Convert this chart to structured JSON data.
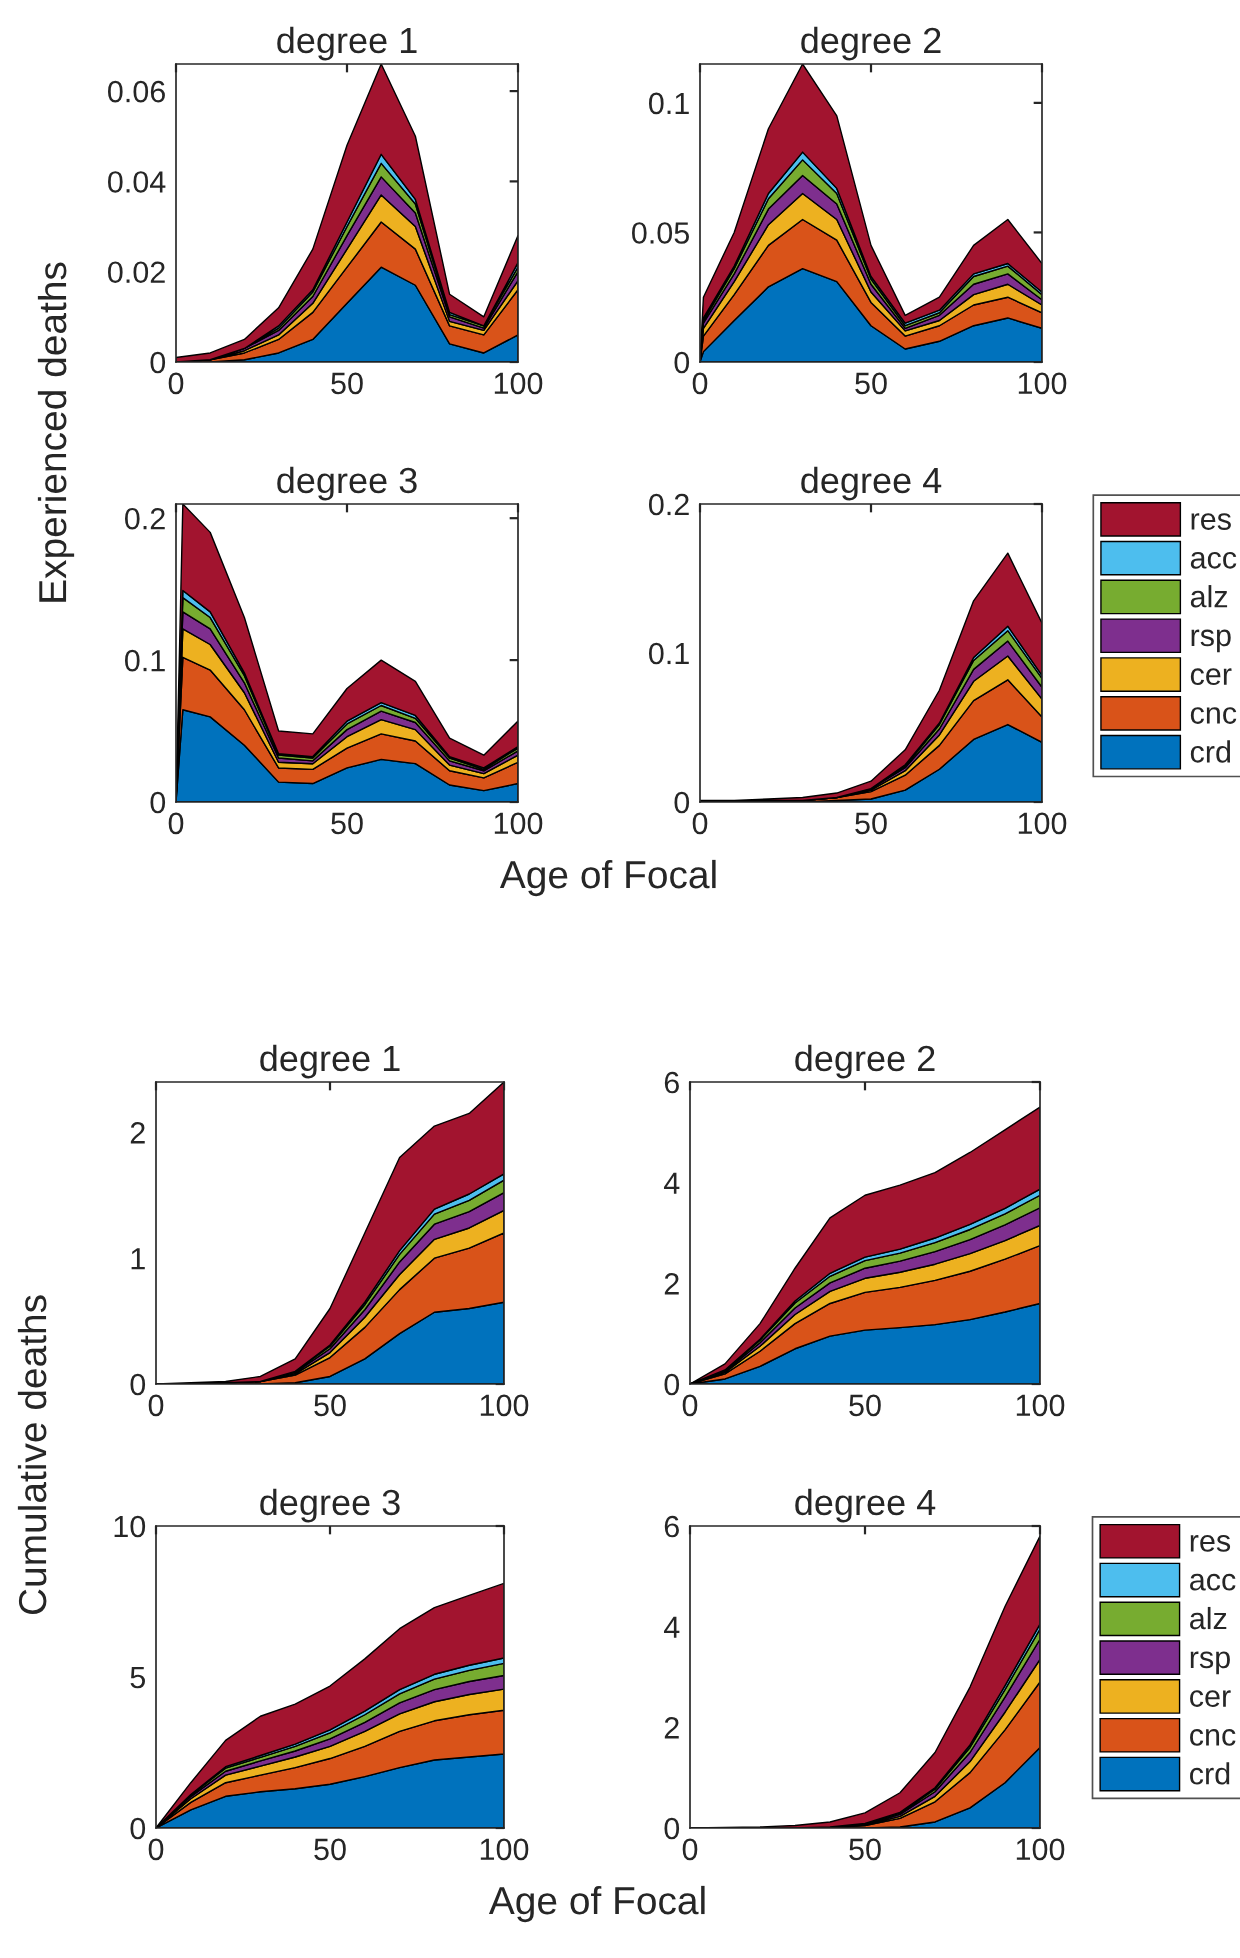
{
  "chart_data": [
    {
      "type": "area",
      "stacked": true,
      "title": "degree 1",
      "ylabel": "Experienced deaths",
      "xlim": [
        0,
        100
      ],
      "xticks": [
        0,
        50,
        100
      ],
      "ylim": [
        0,
        0.066
      ],
      "yticks": [
        0,
        0.02,
        0.04,
        0.06
      ],
      "x": [
        0,
        10,
        20,
        30,
        40,
        50,
        60,
        70,
        80,
        90,
        100
      ],
      "series": [
        {
          "color": "#0072bd",
          "values": [
            0,
            0,
            0.0005,
            0.002,
            0.005,
            0.013,
            0.021,
            0.017,
            0.004,
            0.002,
            0.006
          ]
        },
        {
          "color": "#d95319",
          "values": [
            0,
            0.0005,
            0.0015,
            0.003,
            0.006,
            0.008,
            0.01,
            0.008,
            0.004,
            0.004,
            0.01
          ]
        },
        {
          "color": "#edb120",
          "values": [
            0,
            0,
            0.0005,
            0.001,
            0.002,
            0.004,
            0.006,
            0.005,
            0.001,
            0.001,
            0.002
          ]
        },
        {
          "color": "#7e2f8e",
          "values": [
            0,
            0,
            0.0005,
            0.001,
            0.0015,
            0.003,
            0.004,
            0.003,
            0.001,
            0.0005,
            0.002
          ]
        },
        {
          "color": "#77ac30",
          "values": [
            0,
            0,
            0,
            0.0005,
            0.001,
            0.002,
            0.003,
            0.002,
            0.0005,
            0.0005,
            0.001
          ]
        },
        {
          "color": "#4dbeee",
          "values": [
            0,
            0,
            0,
            0.0005,
            0.0005,
            0.001,
            0.002,
            0.001,
            0.0005,
            0,
            0.001
          ]
        },
        {
          "color": "#a2142f",
          "values": [
            0.001,
            0.0015,
            0.002,
            0.004,
            0.009,
            0.017,
            0.02,
            0.014,
            0.004,
            0.002,
            0.006
          ]
        }
      ]
    },
    {
      "type": "area",
      "stacked": true,
      "title": "degree 2",
      "xlim": [
        0,
        100
      ],
      "xticks": [
        0,
        50,
        100
      ],
      "ylim": [
        0,
        0.115
      ],
      "yticks": [
        0,
        0.05,
        0.1
      ],
      "x": [
        0,
        1,
        10,
        20,
        30,
        40,
        50,
        60,
        70,
        80,
        90,
        100
      ],
      "series": [
        {
          "color": "#0072bd",
          "values": [
            0,
            0.004,
            0.016,
            0.029,
            0.036,
            0.031,
            0.014,
            0.005,
            0.008,
            0.014,
            0.017,
            0.013
          ]
        },
        {
          "color": "#d95319",
          "values": [
            0,
            0.006,
            0.01,
            0.016,
            0.019,
            0.016,
            0.009,
            0.005,
            0.006,
            0.008,
            0.008,
            0.006
          ]
        },
        {
          "color": "#edb120",
          "values": [
            0,
            0.003,
            0.005,
            0.008,
            0.01,
            0.008,
            0.004,
            0.002,
            0.002,
            0.004,
            0.005,
            0.003
          ]
        },
        {
          "color": "#7e2f8e",
          "values": [
            0,
            0.002,
            0.003,
            0.006,
            0.007,
            0.006,
            0.003,
            0.001,
            0.002,
            0.004,
            0.004,
            0.002
          ]
        },
        {
          "color": "#77ac30",
          "values": [
            0,
            0.001,
            0.002,
            0.004,
            0.006,
            0.004,
            0.002,
            0.001,
            0.001,
            0.003,
            0.003,
            0.002
          ]
        },
        {
          "color": "#4dbeee",
          "values": [
            0,
            0.001,
            0.001,
            0.002,
            0.003,
            0.002,
            0.001,
            0.001,
            0.001,
            0.001,
            0.001,
            0.001
          ]
        },
        {
          "color": "#a2142f",
          "values": [
            0,
            0.008,
            0.013,
            0.025,
            0.034,
            0.028,
            0.012,
            0.003,
            0.005,
            0.011,
            0.017,
            0.011
          ]
        }
      ]
    },
    {
      "type": "area",
      "stacked": true,
      "title": "degree 3",
      "xlabel": "Age of Focal",
      "xlim": [
        0,
        100
      ],
      "xticks": [
        0,
        50,
        100
      ],
      "ylim": [
        0,
        0.21
      ],
      "yticks": [
        0,
        0.1,
        0.2
      ],
      "x": [
        0,
        2,
        10,
        20,
        30,
        40,
        50,
        60,
        70,
        80,
        90,
        100
      ],
      "series": [
        {
          "color": "#0072bd",
          "values": [
            0,
            0.065,
            0.06,
            0.04,
            0.014,
            0.013,
            0.024,
            0.03,
            0.027,
            0.012,
            0.008,
            0.013
          ]
        },
        {
          "color": "#d95319",
          "values": [
            0,
            0.037,
            0.033,
            0.025,
            0.01,
            0.01,
            0.014,
            0.018,
            0.016,
            0.01,
            0.009,
            0.015
          ]
        },
        {
          "color": "#edb120",
          "values": [
            0,
            0.02,
            0.018,
            0.012,
            0.004,
            0.004,
            0.008,
            0.01,
            0.008,
            0.004,
            0.003,
            0.005
          ]
        },
        {
          "color": "#7e2f8e",
          "values": [
            0,
            0.012,
            0.011,
            0.007,
            0.003,
            0.002,
            0.005,
            0.006,
            0.005,
            0.003,
            0.002,
            0.003
          ]
        },
        {
          "color": "#77ac30",
          "values": [
            0,
            0.01,
            0.008,
            0.005,
            0.002,
            0.002,
            0.004,
            0.004,
            0.003,
            0.002,
            0.001,
            0.002
          ]
        },
        {
          "color": "#4dbeee",
          "values": [
            0,
            0.005,
            0.004,
            0.002,
            0.001,
            0.001,
            0.002,
            0.002,
            0.002,
            0.001,
            0.001,
            0.001
          ]
        },
        {
          "color": "#a2142f",
          "values": [
            0,
            0.061,
            0.056,
            0.039,
            0.016,
            0.016,
            0.023,
            0.03,
            0.024,
            0.013,
            0.009,
            0.018
          ]
        }
      ]
    },
    {
      "type": "area",
      "stacked": true,
      "title": "degree 4",
      "legend": "right",
      "xlim": [
        0,
        100
      ],
      "xticks": [
        0,
        50,
        100
      ],
      "ylim": [
        0,
        0.2
      ],
      "yticks": [
        0,
        0.1,
        0.2
      ],
      "x": [
        0,
        10,
        20,
        30,
        40,
        50,
        60,
        70,
        80,
        90,
        100
      ],
      "series": [
        {
          "name": "crd",
          "color": "#0072bd",
          "values": [
            0,
            0,
            0,
            0,
            0.001,
            0.002,
            0.008,
            0.022,
            0.042,
            0.052,
            0.04
          ]
        },
        {
          "name": "cnc",
          "color": "#d95319",
          "values": [
            0,
            0,
            0.001,
            0.001,
            0.002,
            0.005,
            0.01,
            0.016,
            0.026,
            0.03,
            0.017
          ]
        },
        {
          "name": "cer",
          "color": "#edb120",
          "values": [
            0,
            0,
            0,
            0,
            0,
            0.001,
            0.003,
            0.007,
            0.013,
            0.016,
            0.012
          ]
        },
        {
          "name": "rsp",
          "color": "#7e2f8e",
          "values": [
            0,
            0,
            0,
            0,
            0,
            0.001,
            0.002,
            0.004,
            0.008,
            0.01,
            0.008
          ]
        },
        {
          "name": "alz",
          "color": "#77ac30",
          "values": [
            0,
            0,
            0,
            0,
            0,
            0,
            0.001,
            0.003,
            0.006,
            0.007,
            0.006
          ]
        },
        {
          "name": "acc",
          "color": "#4dbeee",
          "values": [
            0,
            0,
            0,
            0,
            0,
            0,
            0.001,
            0.001,
            0.002,
            0.003,
            0.002
          ]
        },
        {
          "name": "res",
          "color": "#a2142f",
          "values": [
            0.001,
            0.001,
            0.001,
            0.002,
            0.003,
            0.005,
            0.01,
            0.022,
            0.038,
            0.049,
            0.035
          ]
        }
      ]
    },
    {
      "type": "area",
      "stacked": true,
      "title": "degree 1",
      "ylabel": "Cumulative deaths",
      "xlim": [
        0,
        100
      ],
      "xticks": [
        0,
        50,
        100
      ],
      "ylim": [
        0,
        2.4
      ],
      "yticks": [
        0,
        1,
        2
      ],
      "x": [
        0,
        10,
        20,
        30,
        40,
        50,
        60,
        70,
        80,
        90,
        100
      ],
      "series": [
        {
          "color": "#0072bd",
          "values": [
            0,
            0,
            0,
            0,
            0.01,
            0.06,
            0.2,
            0.4,
            0.57,
            0.6,
            0.65
          ]
        },
        {
          "color": "#d95319",
          "values": [
            0,
            0,
            0.01,
            0.02,
            0.06,
            0.15,
            0.25,
            0.35,
            0.43,
            0.48,
            0.55
          ]
        },
        {
          "color": "#edb120",
          "values": [
            0,
            0,
            0,
            0,
            0.01,
            0.04,
            0.08,
            0.12,
            0.15,
            0.16,
            0.18
          ]
        },
        {
          "color": "#7e2f8e",
          "values": [
            0,
            0,
            0,
            0,
            0.01,
            0.03,
            0.06,
            0.1,
            0.12,
            0.13,
            0.14
          ]
        },
        {
          "color": "#77ac30",
          "values": [
            0,
            0,
            0,
            0,
            0.01,
            0.02,
            0.04,
            0.06,
            0.08,
            0.09,
            0.1
          ]
        },
        {
          "color": "#4dbeee",
          "values": [
            0,
            0,
            0,
            0,
            0,
            0.01,
            0.02,
            0.03,
            0.04,
            0.05,
            0.05
          ]
        },
        {
          "color": "#a2142f",
          "values": [
            0,
            0.01,
            0.01,
            0.04,
            0.1,
            0.29,
            0.55,
            0.74,
            0.66,
            0.64,
            0.73
          ]
        }
      ]
    },
    {
      "type": "area",
      "stacked": true,
      "title": "degree 2",
      "xlim": [
        0,
        100
      ],
      "xticks": [
        0,
        50,
        100
      ],
      "ylim": [
        0,
        6
      ],
      "yticks": [
        0,
        2,
        4,
        6
      ],
      "x": [
        0,
        10,
        20,
        30,
        40,
        50,
        60,
        70,
        80,
        90,
        100
      ],
      "series": [
        {
          "color": "#0072bd",
          "values": [
            0,
            0.1,
            0.35,
            0.7,
            0.95,
            1.07,
            1.12,
            1.18,
            1.28,
            1.43,
            1.6
          ]
        },
        {
          "color": "#d95319",
          "values": [
            0,
            0.1,
            0.3,
            0.5,
            0.65,
            0.75,
            0.8,
            0.88,
            0.96,
            1.05,
            1.15
          ]
        },
        {
          "color": "#edb120",
          "values": [
            0,
            0.03,
            0.1,
            0.18,
            0.24,
            0.28,
            0.3,
            0.32,
            0.35,
            0.37,
            0.4
          ]
        },
        {
          "color": "#7e2f8e",
          "values": [
            0,
            0.02,
            0.07,
            0.13,
            0.17,
            0.2,
            0.22,
            0.25,
            0.28,
            0.31,
            0.35
          ]
        },
        {
          "color": "#77ac30",
          "values": [
            0,
            0.02,
            0.05,
            0.1,
            0.13,
            0.15,
            0.16,
            0.18,
            0.2,
            0.22,
            0.25
          ]
        },
        {
          "color": "#4dbeee",
          "values": [
            0,
            0.01,
            0.02,
            0.04,
            0.06,
            0.07,
            0.08,
            0.09,
            0.1,
            0.11,
            0.12
          ]
        },
        {
          "color": "#a2142f",
          "values": [
            0,
            0.12,
            0.31,
            0.65,
            1.1,
            1.23,
            1.27,
            1.3,
            1.43,
            1.56,
            1.63
          ]
        }
      ]
    },
    {
      "type": "area",
      "stacked": true,
      "title": "degree 3",
      "xlabel": "Age of Focal",
      "xlim": [
        0,
        100
      ],
      "xticks": [
        0,
        50,
        100
      ],
      "ylim": [
        0,
        10
      ],
      "yticks": [
        0,
        5,
        10
      ],
      "x": [
        0,
        10,
        20,
        30,
        40,
        50,
        60,
        70,
        80,
        90,
        100
      ],
      "series": [
        {
          "color": "#0072bd",
          "values": [
            0,
            0.6,
            1.05,
            1.2,
            1.3,
            1.45,
            1.7,
            2.0,
            2.25,
            2.35,
            2.45
          ]
        },
        {
          "color": "#d95319",
          "values": [
            0,
            0.25,
            0.45,
            0.55,
            0.7,
            0.85,
            1.0,
            1.2,
            1.3,
            1.4,
            1.45
          ]
        },
        {
          "color": "#edb120",
          "values": [
            0,
            0.12,
            0.25,
            0.3,
            0.35,
            0.4,
            0.5,
            0.58,
            0.63,
            0.67,
            0.7
          ]
        },
        {
          "color": "#7e2f8e",
          "values": [
            0,
            0.07,
            0.13,
            0.17,
            0.2,
            0.25,
            0.3,
            0.36,
            0.4,
            0.43,
            0.45
          ]
        },
        {
          "color": "#77ac30",
          "values": [
            0,
            0.05,
            0.1,
            0.12,
            0.15,
            0.2,
            0.25,
            0.3,
            0.35,
            0.37,
            0.4
          ]
        },
        {
          "color": "#4dbeee",
          "values": [
            0,
            0.02,
            0.05,
            0.06,
            0.08,
            0.1,
            0.12,
            0.14,
            0.16,
            0.17,
            0.18
          ]
        },
        {
          "color": "#a2142f",
          "values": [
            0,
            0.39,
            0.87,
            1.3,
            1.32,
            1.45,
            1.73,
            2.02,
            2.21,
            2.31,
            2.47
          ]
        }
      ]
    },
    {
      "type": "area",
      "stacked": true,
      "title": "degree 4",
      "legend": "right",
      "xlim": [
        0,
        100
      ],
      "xticks": [
        0,
        50,
        100
      ],
      "ylim": [
        0,
        6
      ],
      "yticks": [
        0,
        2,
        4,
        6
      ],
      "x": [
        0,
        10,
        20,
        30,
        40,
        50,
        60,
        70,
        80,
        90,
        100
      ],
      "series": [
        {
          "name": "crd",
          "color": "#0072bd",
          "values": [
            0,
            0,
            0,
            0,
            0,
            0,
            0.02,
            0.12,
            0.4,
            0.9,
            1.6
          ]
        },
        {
          "name": "cnc",
          "color": "#d95319",
          "values": [
            0,
            0,
            0,
            0,
            0.01,
            0.05,
            0.17,
            0.4,
            0.7,
            1.05,
            1.3
          ]
        },
        {
          "name": "cer",
          "color": "#edb120",
          "values": [
            0,
            0,
            0,
            0,
            0,
            0.01,
            0.04,
            0.11,
            0.22,
            0.35,
            0.45
          ]
        },
        {
          "name": "rsp",
          "color": "#7e2f8e",
          "values": [
            0,
            0,
            0,
            0,
            0,
            0.01,
            0.04,
            0.09,
            0.18,
            0.3,
            0.4
          ]
        },
        {
          "name": "alz",
          "color": "#77ac30",
          "values": [
            0,
            0,
            0,
            0,
            0,
            0.01,
            0.02,
            0.05,
            0.1,
            0.15,
            0.2
          ]
        },
        {
          "name": "acc",
          "color": "#4dbeee",
          "values": [
            0,
            0,
            0,
            0,
            0.01,
            0.01,
            0.02,
            0.03,
            0.05,
            0.08,
            0.1
          ]
        },
        {
          "name": "res",
          "color": "#a2142f",
          "values": [
            0,
            0.01,
            0.02,
            0.05,
            0.1,
            0.21,
            0.39,
            0.7,
            1.15,
            1.57,
            1.75
          ]
        }
      ]
    }
  ]
}
